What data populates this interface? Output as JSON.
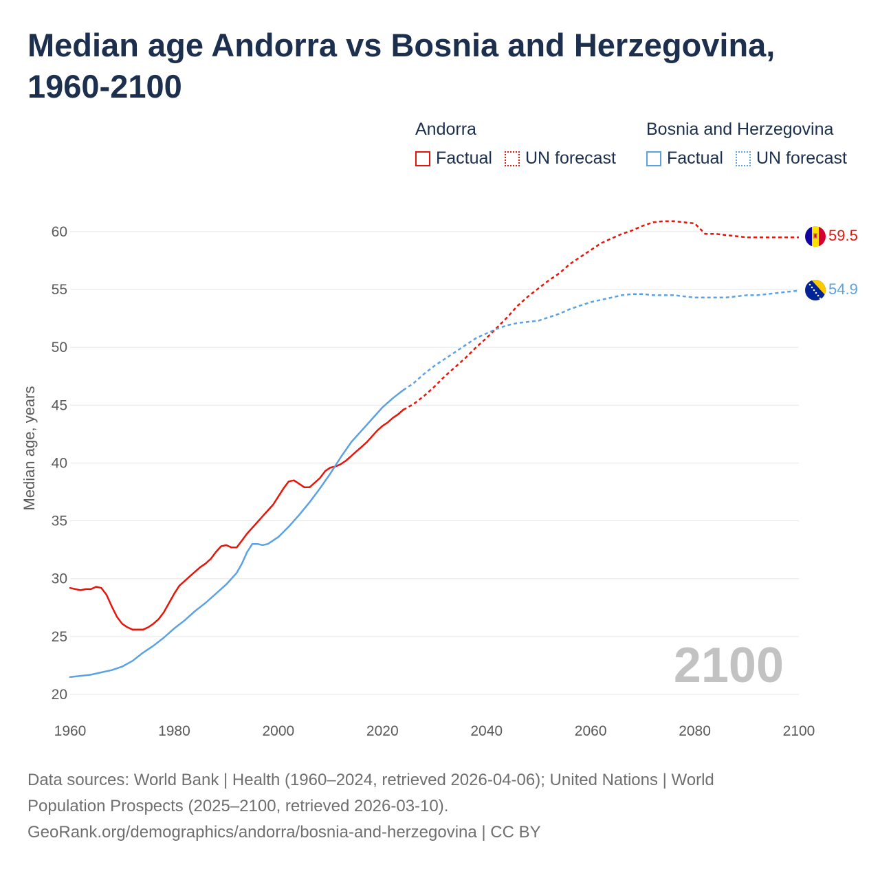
{
  "chart_data": {
    "type": "line",
    "title": "Median age Andorra vs Bosnia and Herzegovina, 1960-2100",
    "xlabel": "",
    "ylabel": "Median age, years",
    "xlim": [
      1960,
      2100
    ],
    "ylim": [
      20,
      61
    ],
    "x_ticks": [
      1960,
      1980,
      2000,
      2020,
      2040,
      2060,
      2080,
      2100
    ],
    "y_ticks": [
      20,
      25,
      30,
      35,
      40,
      45,
      50,
      55,
      60
    ],
    "grid": true,
    "year_watermark": "2100",
    "legend": {
      "groups": [
        {
          "name": "Andorra",
          "factual_label": "Factual",
          "forecast_label": "UN forecast"
        },
        {
          "name": "Bosnia and Herzegovina",
          "factual_label": "Factual",
          "forecast_label": "UN forecast"
        }
      ]
    },
    "series": [
      {
        "name": "Andorra",
        "color": "#e8140a",
        "end_label": "59.5",
        "factual": [
          [
            1960,
            29.2
          ],
          [
            1962,
            29.0
          ],
          [
            1963,
            29.1
          ],
          [
            1964,
            29.1
          ],
          [
            1965,
            29.3
          ],
          [
            1966,
            29.2
          ],
          [
            1967,
            28.6
          ],
          [
            1968,
            27.6
          ],
          [
            1969,
            26.7
          ],
          [
            1970,
            26.1
          ],
          [
            1971,
            25.8
          ],
          [
            1972,
            25.6
          ],
          [
            1973,
            25.6
          ],
          [
            1974,
            25.6
          ],
          [
            1975,
            25.8
          ],
          [
            1976,
            26.1
          ],
          [
            1977,
            26.5
          ],
          [
            1978,
            27.1
          ],
          [
            1979,
            27.9
          ],
          [
            1980,
            28.7
          ],
          [
            1981,
            29.4
          ],
          [
            1982,
            29.8
          ],
          [
            1983,
            30.2
          ],
          [
            1984,
            30.6
          ],
          [
            1985,
            31.0
          ],
          [
            1986,
            31.3
          ],
          [
            1987,
            31.7
          ],
          [
            1988,
            32.3
          ],
          [
            1989,
            32.8
          ],
          [
            1990,
            32.9
          ],
          [
            1991,
            32.7
          ],
          [
            1992,
            32.7
          ],
          [
            1993,
            33.3
          ],
          [
            1994,
            33.9
          ],
          [
            1995,
            34.4
          ],
          [
            1996,
            34.9
          ],
          [
            1997,
            35.4
          ],
          [
            1998,
            35.9
          ],
          [
            1999,
            36.4
          ],
          [
            2000,
            37.1
          ],
          [
            2001,
            37.8
          ],
          [
            2002,
            38.4
          ],
          [
            2003,
            38.5
          ],
          [
            2004,
            38.2
          ],
          [
            2005,
            37.9
          ],
          [
            2006,
            37.9
          ],
          [
            2007,
            38.3
          ],
          [
            2008,
            38.7
          ],
          [
            2009,
            39.3
          ],
          [
            2010,
            39.6
          ],
          [
            2011,
            39.7
          ],
          [
            2012,
            39.9
          ],
          [
            2013,
            40.2
          ],
          [
            2014,
            40.6
          ],
          [
            2015,
            41.0
          ],
          [
            2016,
            41.4
          ],
          [
            2017,
            41.8
          ],
          [
            2018,
            42.3
          ],
          [
            2019,
            42.8
          ],
          [
            2020,
            43.2
          ],
          [
            2021,
            43.5
          ],
          [
            2022,
            43.9
          ],
          [
            2023,
            44.2
          ],
          [
            2024,
            44.6
          ]
        ],
        "forecast": [
          [
            2024,
            44.6
          ],
          [
            2026,
            45.1
          ],
          [
            2028,
            45.8
          ],
          [
            2030,
            46.6
          ],
          [
            2032,
            47.5
          ],
          [
            2034,
            48.3
          ],
          [
            2036,
            49.1
          ],
          [
            2038,
            50.0
          ],
          [
            2040,
            50.8
          ],
          [
            2042,
            51.7
          ],
          [
            2044,
            52.6
          ],
          [
            2046,
            53.6
          ],
          [
            2048,
            54.4
          ],
          [
            2050,
            55.1
          ],
          [
            2052,
            55.8
          ],
          [
            2054,
            56.4
          ],
          [
            2056,
            57.2
          ],
          [
            2058,
            57.8
          ],
          [
            2060,
            58.4
          ],
          [
            2062,
            59.0
          ],
          [
            2064,
            59.4
          ],
          [
            2066,
            59.8
          ],
          [
            2068,
            60.1
          ],
          [
            2070,
            60.5
          ],
          [
            2072,
            60.8
          ],
          [
            2074,
            60.9
          ],
          [
            2076,
            60.9
          ],
          [
            2078,
            60.8
          ],
          [
            2080,
            60.7
          ],
          [
            2082,
            59.8
          ],
          [
            2084,
            59.8
          ],
          [
            2086,
            59.7
          ],
          [
            2088,
            59.6
          ],
          [
            2090,
            59.5
          ],
          [
            2092,
            59.5
          ],
          [
            2094,
            59.5
          ],
          [
            2096,
            59.5
          ],
          [
            2098,
            59.5
          ],
          [
            2100,
            59.5
          ]
        ]
      },
      {
        "name": "Bosnia and Herzegovina",
        "color": "#5aa2e3",
        "end_label": "54.9",
        "factual": [
          [
            1960,
            21.5
          ],
          [
            1962,
            21.6
          ],
          [
            1964,
            21.7
          ],
          [
            1966,
            21.9
          ],
          [
            1968,
            22.1
          ],
          [
            1970,
            22.4
          ],
          [
            1972,
            22.9
          ],
          [
            1974,
            23.6
          ],
          [
            1976,
            24.2
          ],
          [
            1978,
            24.9
          ],
          [
            1980,
            25.7
          ],
          [
            1982,
            26.4
          ],
          [
            1984,
            27.2
          ],
          [
            1986,
            27.9
          ],
          [
            1988,
            28.7
          ],
          [
            1990,
            29.5
          ],
          [
            1992,
            30.5
          ],
          [
            1993,
            31.3
          ],
          [
            1994,
            32.3
          ],
          [
            1995,
            33.0
          ],
          [
            1996,
            33.0
          ],
          [
            1997,
            32.9
          ],
          [
            1998,
            33.0
          ],
          [
            2000,
            33.6
          ],
          [
            2002,
            34.5
          ],
          [
            2004,
            35.5
          ],
          [
            2006,
            36.6
          ],
          [
            2008,
            37.8
          ],
          [
            2010,
            39.1
          ],
          [
            2012,
            40.5
          ],
          [
            2014,
            41.8
          ],
          [
            2016,
            42.8
          ],
          [
            2018,
            43.8
          ],
          [
            2020,
            44.8
          ],
          [
            2022,
            45.6
          ],
          [
            2024,
            46.3
          ]
        ],
        "forecast": [
          [
            2024,
            46.3
          ],
          [
            2026,
            46.9
          ],
          [
            2028,
            47.7
          ],
          [
            2030,
            48.4
          ],
          [
            2032,
            49.0
          ],
          [
            2034,
            49.6
          ],
          [
            2036,
            50.2
          ],
          [
            2038,
            50.8
          ],
          [
            2040,
            51.2
          ],
          [
            2042,
            51.6
          ],
          [
            2044,
            51.9
          ],
          [
            2046,
            52.1
          ],
          [
            2048,
            52.2
          ],
          [
            2050,
            52.3
          ],
          [
            2052,
            52.6
          ],
          [
            2054,
            52.9
          ],
          [
            2056,
            53.3
          ],
          [
            2058,
            53.6
          ],
          [
            2060,
            53.9
          ],
          [
            2062,
            54.1
          ],
          [
            2064,
            54.3
          ],
          [
            2066,
            54.5
          ],
          [
            2068,
            54.6
          ],
          [
            2070,
            54.6
          ],
          [
            2072,
            54.5
          ],
          [
            2074,
            54.5
          ],
          [
            2076,
            54.5
          ],
          [
            2078,
            54.4
          ],
          [
            2080,
            54.3
          ],
          [
            2082,
            54.3
          ],
          [
            2084,
            54.3
          ],
          [
            2086,
            54.3
          ],
          [
            2088,
            54.4
          ],
          [
            2090,
            54.5
          ],
          [
            2092,
            54.5
          ],
          [
            2094,
            54.6
          ],
          [
            2096,
            54.7
          ],
          [
            2098,
            54.8
          ],
          [
            2100,
            54.9
          ]
        ]
      }
    ]
  },
  "footer": {
    "line1": "Data sources: World Bank | Health (1960–2024, retrieved 2026-04-06); United Nations | World",
    "line2": "Population Prospects (2025–2100, retrieved 2026-03-10).",
    "line3": "GeoRank.org/demographics/andorra/bosnia-and-herzegovina | CC BY"
  }
}
